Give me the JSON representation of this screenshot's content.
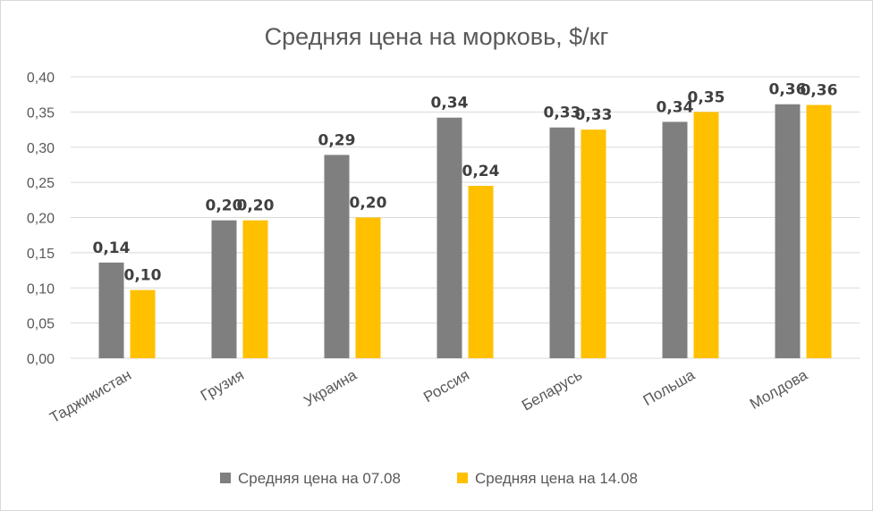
{
  "chart_data": {
    "type": "bar",
    "title": "Средняя цена на морковь, $/кг",
    "categories": [
      "Таджикистан",
      "Грузия",
      "Украина",
      "Россия",
      "Беларусь",
      "Польша",
      "Молдова"
    ],
    "series": [
      {
        "name": "Средняя цена на 07.08",
        "color": "#7f7f7f",
        "values": [
          0.136,
          0.196,
          0.289,
          0.342,
          0.328,
          0.336,
          0.361
        ],
        "labels": [
          "0,14",
          "0,20",
          "0,29",
          "0,34",
          "0,33",
          "0,34",
          "0,36"
        ]
      },
      {
        "name": "Средняя цена на 14.08",
        "color": "#ffc000",
        "values": [
          0.097,
          0.196,
          0.2,
          0.245,
          0.325,
          0.35,
          0.36
        ],
        "labels": [
          "0,10",
          "0,20",
          "0,20",
          "0,24",
          "0,33",
          "0,35",
          "0,36"
        ]
      }
    ],
    "ylim": [
      0,
      0.4
    ],
    "yticks": [
      "0,00",
      "0,05",
      "0,10",
      "0,15",
      "0,20",
      "0,25",
      "0,30",
      "0,35",
      "0,40"
    ],
    "grid": true,
    "legend_position": "bottom"
  }
}
